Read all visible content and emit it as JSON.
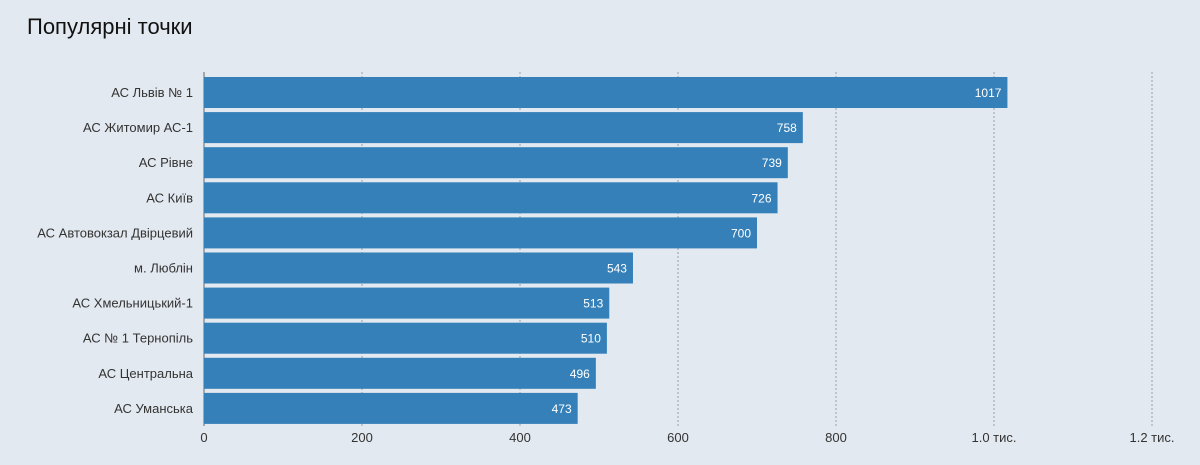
{
  "title": "Популярні точки",
  "colors": {
    "background": "#e3e9f0",
    "bar": "#3580b8",
    "grid": "#9aa0a8",
    "axis": "#666666"
  },
  "chart_data": {
    "type": "bar",
    "orientation": "horizontal",
    "title": "Популярні точки",
    "xlabel": "",
    "ylabel": "",
    "categories": [
      "АС Львів № 1",
      "АС Житомир АС-1",
      "АС Рівне",
      "АС Київ",
      "АС Автовокзал Двірцевий",
      "м. Люблін",
      "АС Хмельницький-1",
      "АС № 1 Тернопіль",
      "АС Центральна",
      "АС Уманська"
    ],
    "values": [
      1017,
      758,
      739,
      726,
      700,
      543,
      513,
      510,
      496,
      473
    ],
    "value_labels": [
      "1017",
      "758",
      "739",
      "726",
      "700",
      "543",
      "513",
      "510",
      "496",
      "473"
    ],
    "xlim": [
      0,
      1200
    ],
    "ticks": [
      0,
      200,
      400,
      600,
      800,
      1000,
      1200
    ],
    "tick_labels": [
      "0",
      "200",
      "400",
      "600",
      "800",
      "1.0 тис.",
      "1.2 тис."
    ],
    "grid": "vertical dotted",
    "legend": "none"
  }
}
